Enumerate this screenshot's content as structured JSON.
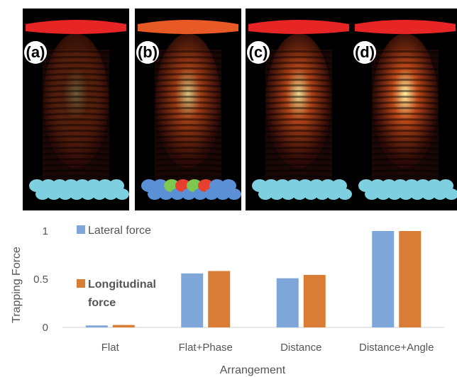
{
  "panels": [
    {
      "label": "(a)",
      "top_color": "#e82525",
      "bottom_color": "#7ecfe0",
      "mixed": false,
      "intensity": 0.35
    },
    {
      "label": "(b)",
      "top_color": "#e85a25",
      "bottom_color": "#5b8fd6",
      "mixed": true,
      "intensity": 0.8
    },
    {
      "label": "(c)",
      "top_color": "#e82525",
      "bottom_color": "#7ecfe0",
      "mixed": false,
      "intensity": 0.9
    },
    {
      "label": "(d)",
      "top_color": "#e82525",
      "bottom_color": "#7ecfe0",
      "mixed": false,
      "intensity": 1.0
    }
  ],
  "chart_data": {
    "type": "bar",
    "categories": [
      "Flat",
      "Flat+Phase",
      "Distance",
      "Distance+Angle"
    ],
    "series": [
      {
        "name": "Lateral force",
        "color": "#7ea6d9",
        "values": [
          0.02,
          0.56,
          0.51,
          1.0
        ]
      },
      {
        "name": "Longitudinal force",
        "color": "#d97d36",
        "values": [
          0.025,
          0.585,
          0.545,
          1.0
        ]
      }
    ],
    "xlabel": "Arrangement",
    "ylabel": "Trapping Force",
    "ylim": [
      0,
      1.0
    ],
    "yticks": [
      "0",
      "0.5",
      "1"
    ],
    "legend": {
      "entries": [
        "Lateral force",
        "Longitudinal\nforce"
      ],
      "placement": "top-left"
    },
    "grid": false
  }
}
